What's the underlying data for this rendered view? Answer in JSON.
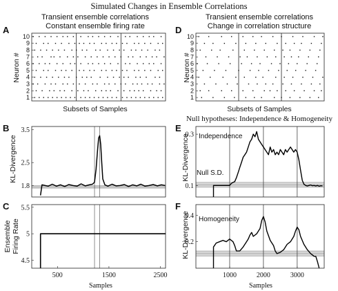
{
  "figure_title": "Simulated Changes in Ensemble Correlations",
  "chart_data": [
    {
      "panel": "A",
      "type": "raster",
      "title_lines": [
        "Transient ensemble correlations",
        "Constant ensemble firing rate"
      ],
      "ylabel": "Neuron #",
      "xlabel": "Subsets of Samples",
      "yticks": [
        "1",
        "2",
        "3",
        "4",
        "5",
        "6",
        "7",
        "8",
        "9",
        "10"
      ],
      "ylim": [
        0.5,
        10.5
      ],
      "xlim": [
        0,
        90
      ],
      "segments": 3,
      "rows": [
        {
          "neuron": 1,
          "spikes": [
            2,
            5,
            8,
            11,
            14,
            17,
            20,
            23,
            26,
            29,
            33,
            36,
            39,
            42,
            45,
            48,
            51,
            54,
            57,
            61,
            64,
            67,
            70,
            73,
            76,
            79,
            82,
            85,
            88
          ]
        },
        {
          "neuron": 2,
          "spikes": [
            3,
            7,
            12,
            15,
            19,
            22,
            27,
            31,
            35,
            38,
            43,
            47,
            50,
            53,
            58,
            62,
            66,
            69,
            72,
            75,
            80,
            84,
            87
          ]
        },
        {
          "neuron": 3,
          "spikes": [
            1,
            4,
            9,
            13,
            16,
            21,
            24,
            28,
            32,
            36,
            41,
            44,
            49,
            52,
            56,
            60,
            63,
            68,
            71,
            74,
            78,
            81,
            86,
            89
          ]
        },
        {
          "neuron": 4,
          "spikes": [
            2,
            6,
            10,
            14,
            18,
            22,
            25,
            30,
            34,
            37,
            40,
            46,
            51,
            55,
            59,
            62,
            65,
            70,
            73,
            77,
            83,
            86
          ]
        },
        {
          "neuron": 5,
          "spikes": [
            3,
            8,
            11,
            16,
            20,
            23,
            27,
            32,
            35,
            39,
            42,
            47,
            50,
            54,
            57,
            61,
            64,
            69,
            72,
            76,
            80,
            85,
            88
          ]
        },
        {
          "neuron": 6,
          "spikes": [
            1,
            5,
            9,
            12,
            17,
            21,
            26,
            29,
            33,
            38,
            41,
            45,
            49,
            53,
            58,
            63,
            66,
            71,
            75,
            79,
            82,
            87
          ]
        },
        {
          "neuron": 7,
          "spikes": [
            4,
            7,
            13,
            15,
            19,
            24,
            28,
            31,
            36,
            40,
            44,
            48,
            52,
            56,
            60,
            65,
            68,
            73,
            77,
            81,
            84,
            89
          ]
        },
        {
          "neuron": 8,
          "spikes": [
            2,
            6,
            10,
            14,
            18,
            22,
            27,
            30,
            34,
            37,
            43,
            46,
            51,
            55,
            59,
            62,
            67,
            70,
            74,
            78,
            83,
            86
          ]
        },
        {
          "neuron": 9,
          "spikes": [
            3,
            8,
            11,
            16,
            20,
            25,
            29,
            32,
            35,
            39,
            42,
            47,
            50,
            54,
            57,
            61,
            64,
            69,
            72,
            76,
            80,
            85,
            88
          ]
        },
        {
          "neuron": 10,
          "spikes": [
            1,
            5,
            9,
            13,
            17,
            21,
            24,
            28,
            33,
            38,
            41,
            45,
            49,
            53,
            58,
            63,
            66,
            71,
            75,
            79,
            82,
            87
          ]
        }
      ]
    },
    {
      "panel": "D",
      "type": "raster",
      "title_lines": [
        "Transient ensemble correlations",
        "Change in correlation structure"
      ],
      "ylabel": "Neuron #",
      "xlabel": "Subsets of Samples",
      "yticks": [
        "1",
        "2",
        "3",
        "4",
        "5",
        "6",
        "7",
        "8",
        "9",
        "10"
      ],
      "ylim": [
        0.5,
        10.5
      ],
      "xlim": [
        0,
        90
      ],
      "segments": 3,
      "rows": [
        {
          "neuron": 1,
          "spikes": [
            4,
            12,
            20,
            27,
            35,
            41,
            46,
            55,
            60,
            66,
            73,
            80,
            86
          ]
        },
        {
          "neuron": 2,
          "spikes": [
            3,
            9,
            18,
            25,
            33,
            40,
            48,
            52,
            57,
            63,
            69,
            76,
            83,
            88
          ]
        },
        {
          "neuron": 3,
          "spikes": [
            6,
            14,
            22,
            29,
            37,
            43,
            49,
            54,
            61,
            67,
            74,
            81,
            87
          ]
        },
        {
          "neuron": 4,
          "spikes": [
            2,
            10,
            19,
            28,
            34,
            42,
            47,
            56,
            62,
            68,
            75,
            82,
            89
          ]
        },
        {
          "neuron": 5,
          "spikes": [
            5,
            13,
            21,
            30,
            38,
            44,
            51,
            58,
            64,
            70,
            77,
            84
          ]
        },
        {
          "neuron": 6,
          "spikes": [
            1,
            8,
            16,
            24,
            32,
            39,
            45,
            53,
            59,
            65,
            71,
            78,
            85
          ]
        },
        {
          "neuron": 7,
          "spikes": [
            7,
            15,
            23,
            31,
            36,
            43,
            50,
            56,
            62,
            67,
            72,
            79,
            86
          ]
        },
        {
          "neuron": 8,
          "spikes": [
            3,
            11,
            17,
            26,
            34,
            41,
            48,
            55,
            61,
            66,
            73,
            80,
            87
          ]
        },
        {
          "neuron": 9,
          "spikes": [
            6,
            12,
            20,
            28,
            35,
            42,
            49,
            57,
            63,
            69,
            74,
            81,
            88
          ]
        },
        {
          "neuron": 10,
          "spikes": [
            2,
            9,
            18,
            25,
            33,
            40,
            46,
            54,
            60,
            68,
            75,
            83,
            89
          ]
        }
      ]
    },
    {
      "panel": "B",
      "type": "line",
      "ylabel": "KL-Divergence",
      "yticks": [
        1.8,
        2.5,
        3.5
      ],
      "ylim": [
        1.45,
        3.6
      ],
      "xlim": [
        0,
        2600
      ],
      "vlines": [
        1220,
        1320
      ],
      "band": [
        1.72,
        1.8
      ],
      "x": [
        170,
        200,
        260,
        320,
        400,
        480,
        560,
        640,
        720,
        800,
        880,
        960,
        1040,
        1120,
        1180,
        1220,
        1250,
        1280,
        1300,
        1320,
        1340,
        1360,
        1380,
        1420,
        1480,
        1560,
        1640,
        1720,
        1800,
        1880,
        1960,
        2040,
        2120,
        2200,
        2280,
        2360,
        2440,
        2520,
        2590
      ],
      "y": [
        1.5,
        1.82,
        1.8,
        1.78,
        1.84,
        1.78,
        1.82,
        1.77,
        1.83,
        1.8,
        1.78,
        1.85,
        1.79,
        1.82,
        1.84,
        1.9,
        2.3,
        2.9,
        3.25,
        3.32,
        3.05,
        2.5,
        2.0,
        1.82,
        1.78,
        1.84,
        1.79,
        1.8,
        1.83,
        1.77,
        1.82,
        1.79,
        1.84,
        1.78,
        1.8,
        1.83,
        1.79,
        1.82,
        1.8
      ]
    },
    {
      "panel": "C",
      "type": "line",
      "ylabel": "Ensemble Firing Rate",
      "xlabel": "Samples",
      "yticks": [
        4.5,
        5,
        5.5
      ],
      "ylim": [
        4.35,
        5.55
      ],
      "xlim": [
        0,
        2600
      ],
      "xticks": [
        500,
        1500,
        2500
      ],
      "vlines": [
        1220,
        1320
      ],
      "x": [
        170,
        170,
        2600
      ],
      "y": [
        4.35,
        5,
        5
      ]
    },
    {
      "panel": "E",
      "type": "line",
      "header": "Null hypotheses: Independence & Homogeneity",
      "annotation": "Independence",
      "null_label": "Null S.D.",
      "ylabel": "KL-Divergence",
      "yticks": [
        0.1,
        0.3
      ],
      "ylim": [
        0.055,
        0.33
      ],
      "xlim": [
        0,
        3800
      ],
      "vlines": [
        1000,
        2000,
        3000
      ],
      "band": [
        0.093,
        0.112
      ],
      "x": [
        520,
        520,
        600,
        700,
        800,
        900,
        1000,
        1050,
        1100,
        1150,
        1200,
        1250,
        1300,
        1350,
        1400,
        1450,
        1500,
        1550,
        1600,
        1650,
        1700,
        1750,
        1800,
        1850,
        1900,
        1950,
        2000,
        2050,
        2100,
        2150,
        2200,
        2250,
        2300,
        2350,
        2400,
        2450,
        2500,
        2550,
        2600,
        2650,
        2700,
        2750,
        2800,
        2850,
        2900,
        2950,
        3000,
        3050,
        3100,
        3150,
        3200,
        3250,
        3300,
        3350,
        3400,
        3450,
        3500,
        3550,
        3600,
        3650,
        3700,
        3750
      ],
      "y": [
        0.055,
        0.1,
        0.1,
        0.1,
        0.1,
        0.1,
        0.1,
        0.108,
        0.112,
        0.115,
        0.13,
        0.15,
        0.17,
        0.19,
        0.21,
        0.22,
        0.23,
        0.25,
        0.27,
        0.28,
        0.3,
        0.29,
        0.31,
        0.28,
        0.27,
        0.26,
        0.25,
        0.24,
        0.23,
        0.22,
        0.25,
        0.23,
        0.24,
        0.22,
        0.23,
        0.22,
        0.24,
        0.23,
        0.22,
        0.24,
        0.23,
        0.24,
        0.25,
        0.24,
        0.23,
        0.24,
        0.23,
        0.2,
        0.16,
        0.12,
        0.105,
        0.1,
        0.098,
        0.1,
        0.102,
        0.099,
        0.1,
        0.098,
        0.1,
        0.097,
        0.099,
        0.098
      ]
    },
    {
      "panel": "F",
      "type": "line",
      "annotation": "Homogeneity",
      "ylabel": "KL-Divergence",
      "xlabel": "Samples",
      "yticks": [
        0.2,
        0.4
      ],
      "ylim": [
        0.0,
        0.48
      ],
      "xlim": [
        0,
        3800
      ],
      "xticks": [
        1000,
        2000,
        3000
      ],
      "vlines": [
        1000,
        2000,
        3000
      ],
      "band": [
        0.09,
        0.13
      ],
      "x": [
        520,
        520,
        600,
        700,
        800,
        900,
        1000,
        1100,
        1150,
        1200,
        1300,
        1400,
        1500,
        1550,
        1600,
        1650,
        1700,
        1800,
        1900,
        1950,
        2000,
        2050,
        2100,
        2200,
        2300,
        2350,
        2400,
        2500,
        2600,
        2700,
        2800,
        2900,
        2950,
        3000,
        3050,
        3100,
        3200,
        3300,
        3400,
        3450,
        3500,
        3550,
        3600,
        3650
      ],
      "y": [
        0.0,
        0.16,
        0.19,
        0.2,
        0.21,
        0.2,
        0.22,
        0.2,
        0.17,
        0.13,
        0.13,
        0.16,
        0.2,
        0.22,
        0.25,
        0.27,
        0.24,
        0.26,
        0.3,
        0.36,
        0.39,
        0.35,
        0.28,
        0.21,
        0.17,
        0.13,
        0.11,
        0.12,
        0.14,
        0.18,
        0.2,
        0.24,
        0.28,
        0.31,
        0.29,
        0.24,
        0.18,
        0.14,
        0.11,
        0.1,
        0.09,
        0.09,
        0.05,
        0.0
      ]
    }
  ]
}
